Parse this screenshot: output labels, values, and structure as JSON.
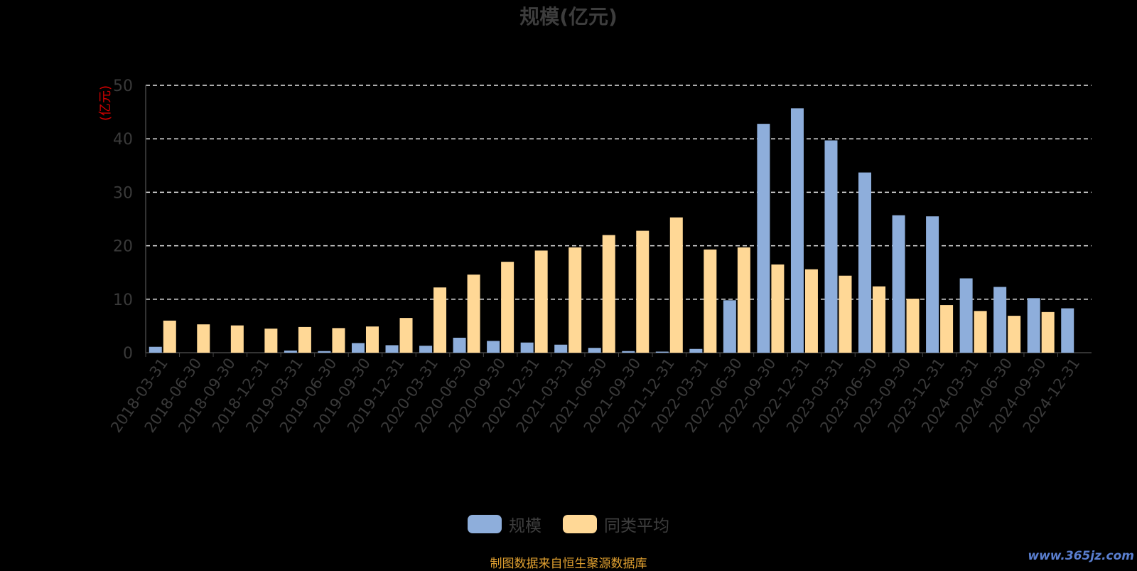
{
  "chart_data": {
    "type": "bar",
    "title": "规模(亿元)",
    "ylabel": "(亿元)",
    "ylim": [
      0,
      50
    ],
    "yticks": [
      0,
      10,
      20,
      30,
      40,
      50
    ],
    "grid": true,
    "legend_placement": "bottom-center",
    "categories": [
      "2018-03-31",
      "2018-06-30",
      "2018-09-30",
      "2018-12-31",
      "2019-03-31",
      "2019-06-30",
      "2019-09-30",
      "2019-12-31",
      "2020-03-31",
      "2020-06-30",
      "2020-09-30",
      "2020-12-31",
      "2021-03-31",
      "2021-06-30",
      "2021-09-30",
      "2021-12-31",
      "2022-03-31",
      "2022-06-30",
      "2022-09-30",
      "2022-12-31",
      "2023-03-31",
      "2023-06-30",
      "2023-09-30",
      "2023-12-31",
      "2024-03-31",
      "2024-06-30",
      "2024-09-30",
      "2024-12-31"
    ],
    "series": [
      {
        "name": "规模",
        "color": "#8eaedb",
        "values": [
          1.1,
          0,
          0,
          0,
          0.4,
          0.3,
          1.8,
          1.4,
          1.3,
          2.8,
          2.2,
          1.9,
          1.5,
          0.9,
          0.3,
          0.2,
          0.7,
          9.8,
          42.8,
          45.7,
          39.7,
          33.7,
          25.7,
          25.5,
          13.9,
          12.3,
          10.2,
          8.3
        ]
      },
      {
        "name": "同类平均",
        "color": "#ffd896",
        "values": [
          6.0,
          5.3,
          5.1,
          4.5,
          4.8,
          4.6,
          4.9,
          6.5,
          12.2,
          14.6,
          17.0,
          19.1,
          19.7,
          22.0,
          22.8,
          25.3,
          19.3,
          19.7,
          16.5,
          15.6,
          14.4,
          12.4,
          10.1,
          8.9,
          7.8,
          6.9,
          7.6,
          null
        ]
      }
    ]
  },
  "footer": {
    "source": "制图数据来自恒生聚源数据库",
    "watermark": "www.365jz.com"
  }
}
